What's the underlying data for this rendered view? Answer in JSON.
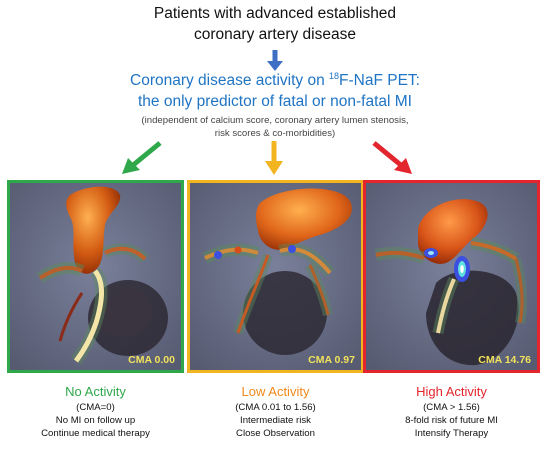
{
  "header": {
    "line1": "Patients with advanced established",
    "line2": "coronary artery disease"
  },
  "pet": {
    "line1_pre": "Coronary disease activity on ",
    "line1_sup": "18",
    "line1_post": "F-NaF PET:",
    "line2": "the only predictor of fatal or non-fatal MI"
  },
  "note": {
    "line1": "(independent of calcium score, coronary artery lumen stenosis,",
    "line2": "risk scores & co-morbidities)"
  },
  "colors": {
    "none": "#2ea84a",
    "low": "#f2b520",
    "high": "#e3262d",
    "down_arrow": "#3d6fc4",
    "pet_text": "#1f74c4"
  },
  "panels": [
    {
      "cma_label": "CMA 0.00"
    },
    {
      "cma_label": "CMA 0.97"
    },
    {
      "cma_label": "CMA 14.76"
    }
  ],
  "captions": [
    {
      "heading": "No Activity",
      "line1": "(CMA=0)",
      "line2": "No MI on follow up",
      "line3": "Continue medical therapy"
    },
    {
      "heading": "Low Activity",
      "line1": "(CMA 0.01 to 1.56)",
      "line2": "Intermediate risk",
      "line3": "Close Observation"
    },
    {
      "heading": "High Activity",
      "line1": "(CMA > 1.56)",
      "line2": "8-fold risk of future MI",
      "line3": "Intensify Therapy"
    }
  ]
}
